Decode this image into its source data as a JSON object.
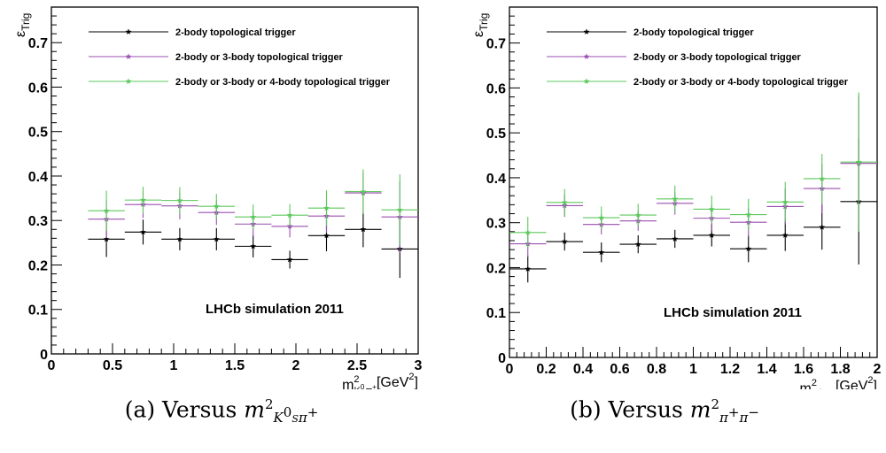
{
  "chart_data": [
    {
      "type": "scatter",
      "ylabel": "ε",
      "ylabel_sub": "Trig",
      "xlabel_text": "m",
      "xlabel_sup": "2",
      "xlabel_sub": "K",
      "xlabel_sub_sup": "0",
      "xlabel_sub2": "S",
      "xlabel_sub3": "π",
      "xlabel_sub3_sup": "+",
      "xlabel_unit": "[GeV",
      "xlabel_unit_sup": "2",
      "xlabel_unit_end": "]",
      "xlim": [
        0,
        3
      ],
      "ylim": [
        0,
        0.78
      ],
      "xticks": [
        "0",
        "0.5",
        "1",
        "1.5",
        "2",
        "2.5",
        "3"
      ],
      "xtick_values": [
        0,
        0.5,
        1,
        1.5,
        2,
        2.5,
        3
      ],
      "yticks": [
        "0",
        "0.1",
        "0.2",
        "0.3",
        "0.4",
        "0.5",
        "0.6",
        "0.7"
      ],
      "ytick_values": [
        0,
        0.1,
        0.2,
        0.3,
        0.4,
        0.5,
        0.6,
        0.7
      ],
      "x": [
        0.45,
        0.75,
        1.05,
        1.35,
        1.65,
        1.95,
        2.25,
        2.55,
        2.85
      ],
      "bin_half_width": 0.15,
      "annotation": "LHCb simulation 2011",
      "legend_position": "top-left",
      "series": [
        {
          "name": "2-body topological trigger",
          "color": "#000000",
          "values": [
            0.258,
            0.274,
            0.258,
            0.258,
            0.242,
            0.212,
            0.266,
            0.28,
            0.236
          ],
          "errors": [
            0.04,
            0.028,
            0.025,
            0.025,
            0.025,
            0.02,
            0.035,
            0.04,
            0.065
          ]
        },
        {
          "name": "2-body or 3-body topological trigger",
          "color": "#9a4fb0",
          "values": [
            0.303,
            0.336,
            0.333,
            0.318,
            0.292,
            0.287,
            0.31,
            0.362,
            0.308
          ],
          "errors": [
            0.042,
            0.03,
            0.03,
            0.028,
            0.028,
            0.025,
            0.038,
            0.045,
            0.08
          ]
        },
        {
          "name": "2-body or 3-body or 4-body topological trigger",
          "color": "#5cc85c",
          "values": [
            0.322,
            0.346,
            0.345,
            0.332,
            0.308,
            0.312,
            0.328,
            0.365,
            0.324
          ],
          "errors": [
            0.045,
            0.03,
            0.03,
            0.028,
            0.028,
            0.025,
            0.04,
            0.05,
            0.08
          ]
        }
      ]
    },
    {
      "type": "scatter",
      "ylabel": "ε",
      "ylabel_sub": "Trig",
      "xlabel_text": "m",
      "xlabel_sup": "2",
      "xlabel_sub": "π",
      "xlabel_sub_sup": "+",
      "xlabel_sub3": "π",
      "xlabel_sub3_sup": "-",
      "xlabel_unit": " [GeV",
      "xlabel_unit_sup": "2",
      "xlabel_unit_end": "]",
      "xlim": [
        0,
        2
      ],
      "ylim": [
        0,
        0.78
      ],
      "xticks": [
        "0",
        "0.2",
        "0.4",
        "0.6",
        "0.8",
        "1",
        "1.2",
        "1.4",
        "1.6",
        "1.8",
        "2"
      ],
      "xtick_values": [
        0,
        0.2,
        0.4,
        0.6,
        0.8,
        1,
        1.2,
        1.4,
        1.6,
        1.8,
        2
      ],
      "yticks": [
        "0",
        "0.1",
        "0.2",
        "0.3",
        "0.4",
        "0.5",
        "0.6",
        "0.7"
      ],
      "ytick_values": [
        0,
        0.1,
        0.2,
        0.3,
        0.4,
        0.5,
        0.6,
        0.7
      ],
      "x": [
        0.1,
        0.3,
        0.5,
        0.7,
        0.9,
        1.1,
        1.3,
        1.5,
        1.7,
        1.9
      ],
      "bin_half_width": 0.1,
      "annotation": "LHCb simulation 2011",
      "legend_position": "top-left",
      "series": [
        {
          "name": "2-body topological trigger",
          "color": "#000000",
          "values": [
            0.197,
            0.258,
            0.234,
            0.252,
            0.264,
            0.272,
            0.242,
            0.272,
            0.29,
            0.347
          ],
          "errors": [
            0.03,
            0.02,
            0.022,
            0.02,
            0.02,
            0.025,
            0.03,
            0.035,
            0.05,
            0.14
          ]
        },
        {
          "name": "2-body or 3-body topological trigger",
          "color": "#9a4fb0",
          "values": [
            0.253,
            0.338,
            0.296,
            0.304,
            0.343,
            0.31,
            0.301,
            0.336,
            0.376,
            0.432
          ],
          "errors": [
            0.03,
            0.025,
            0.022,
            0.022,
            0.025,
            0.028,
            0.032,
            0.04,
            0.055,
            0.15
          ]
        },
        {
          "name": "2-body or 3-body or 4-body topological trigger",
          "color": "#5cc85c",
          "values": [
            0.278,
            0.345,
            0.311,
            0.317,
            0.353,
            0.33,
            0.318,
            0.346,
            0.398,
            0.435
          ],
          "errors": [
            0.035,
            0.03,
            0.025,
            0.025,
            0.03,
            0.03,
            0.035,
            0.045,
            0.055,
            0.155
          ]
        }
      ]
    }
  ],
  "captions": [
    {
      "prefix": "(a) Versus ",
      "m": "m",
      "sup": "2",
      "sub": "K",
      "sub_sup": "0",
      "sub2": "S",
      "sub3": "π",
      "sub3_sup": "+"
    },
    {
      "prefix": "(b) Versus ",
      "m": "m",
      "sup": "2",
      "sub": "π",
      "sub_sup": "+",
      "sub2": "",
      "sub3": "π",
      "sub3_sup": "−"
    }
  ]
}
